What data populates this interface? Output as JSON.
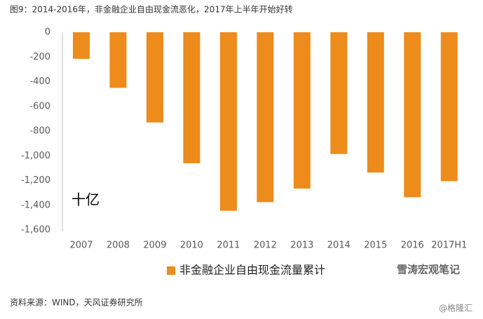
{
  "chart_data": {
    "type": "bar",
    "title": "图9：2014-2016年，非金融企业自由现金流恶化，2017年上半年开始好转",
    "annotation": "十亿",
    "categories": [
      "2007",
      "2008",
      "2009",
      "2010",
      "2011",
      "2012",
      "2013",
      "2014",
      "2015",
      "2016",
      "2017H1"
    ],
    "series": [
      {
        "name": "非金融企业自由现金流量累计",
        "color": "#ED8B1B",
        "values": [
          -215,
          -450,
          -730,
          -1060,
          -1445,
          -1375,
          -1265,
          -985,
          -1135,
          -1335,
          -1205
        ]
      }
    ],
    "ylim": [
      -1600,
      0
    ],
    "yticks": [
      0,
      -200,
      -400,
      -600,
      -800,
      {
        "value": -1000,
        "label": "-1,000"
      },
      {
        "value": -1200,
        "label": "-1,200"
      },
      {
        "value": -1400,
        "label": "-1,400"
      },
      {
        "value": -1600,
        "label": "-1,600"
      }
    ],
    "grid": false,
    "source": "资料来源：WIND，天风证券研究所",
    "watermarks": [
      "雪涛宏观笔记",
      "@格隆汇"
    ]
  }
}
